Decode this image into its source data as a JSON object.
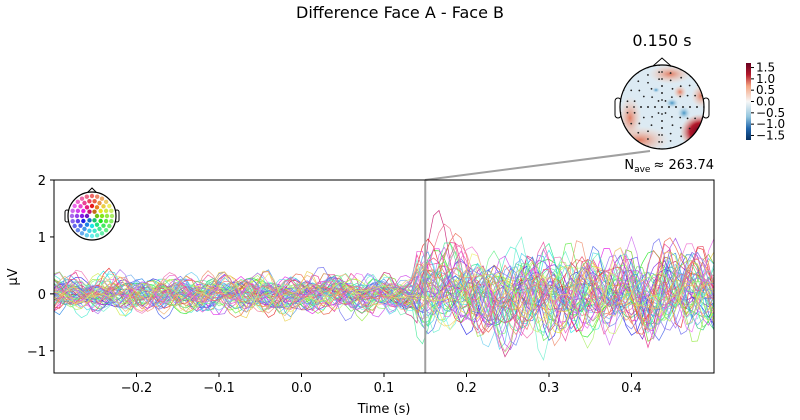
{
  "chart_data": {
    "type": "line",
    "title": "Difference Face A - Face B",
    "xlabel": "Time (s)",
    "ylabel": "µV",
    "xlim": [
      -0.3,
      0.5
    ],
    "ylim": [
      -1.39,
      2
    ],
    "xticks": [
      "−0.2",
      "−0.1",
      "0.0",
      "0.1",
      "0.2",
      "0.3",
      "0.4"
    ],
    "xtick_values": [
      -0.2,
      -0.1,
      0.0,
      0.1,
      0.2,
      0.3,
      0.4
    ],
    "yticks": [
      "−1",
      "0",
      "1",
      "2"
    ],
    "ytick_values": [
      -1,
      0,
      1,
      2
    ],
    "grid": false,
    "series_description_count": 60,
    "marker_time": 0.15,
    "annotation": {
      "n_label": "N",
      "n_sub": "ave",
      "value_text": "≈ 263.74"
    },
    "topomap": {
      "time_label": "0.150 s",
      "colormap": "RdBu_r",
      "colorbar_ticks": [
        "1.5",
        "1.0",
        "0.5",
        "0.0",
        "−0.5",
        "−1.0",
        "−1.5"
      ],
      "colorbar_tick_values": [
        1.5,
        1.0,
        0.5,
        0.0,
        -0.5,
        -1.0,
        -1.5
      ]
    }
  },
  "colors": {
    "marker_line": "#a0a0a0",
    "cmap_high": "#67001f",
    "cmap_low": "#053061"
  }
}
